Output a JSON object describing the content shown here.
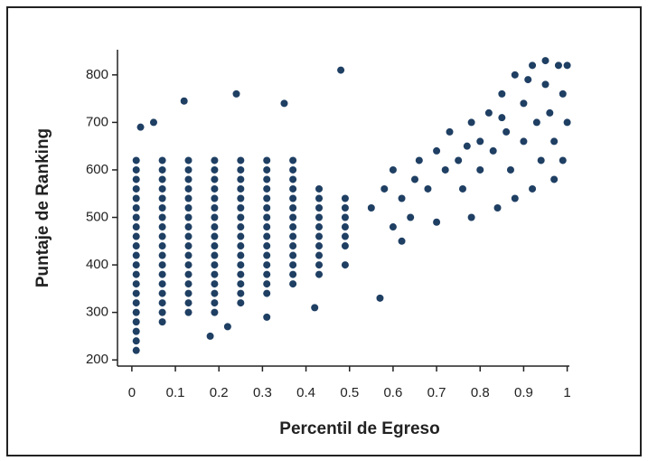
{
  "chart_data": {
    "type": "scatter",
    "xlabel": "Percentil de Egreso",
    "ylabel": "Puntaje de Ranking",
    "color": "#1f3f63",
    "xlim": [
      -0.033,
      1.005
    ],
    "ylim": [
      187,
      853
    ],
    "xticks": [
      0,
      0.1,
      0.2,
      0.3,
      0.4,
      0.5,
      0.6,
      0.7,
      0.8,
      0.9,
      1
    ],
    "yticks": [
      200,
      300,
      400,
      500,
      600,
      700,
      800
    ],
    "x": [
      0.01,
      0.07,
      0.13,
      0.19,
      0.25,
      0.31,
      0.37,
      0.01,
      0.07,
      0.13,
      0.19,
      0.25,
      0.31,
      0.37,
      0.01,
      0.07,
      0.13,
      0.19,
      0.25,
      0.31,
      0.37,
      0.01,
      0.07,
      0.13,
      0.19,
      0.25,
      0.31,
      0.37,
      0.43,
      0.01,
      0.07,
      0.13,
      0.19,
      0.25,
      0.31,
      0.37,
      0.43,
      0.49,
      0.01,
      0.07,
      0.13,
      0.19,
      0.25,
      0.31,
      0.37,
      0.43,
      0.49,
      0.01,
      0.07,
      0.13,
      0.19,
      0.25,
      0.31,
      0.37,
      0.43,
      0.49,
      0.01,
      0.07,
      0.13,
      0.19,
      0.25,
      0.31,
      0.37,
      0.43,
      0.49,
      0.01,
      0.07,
      0.13,
      0.19,
      0.25,
      0.31,
      0.37,
      0.43,
      0.49,
      0.01,
      0.07,
      0.13,
      0.19,
      0.25,
      0.31,
      0.37,
      0.43,
      0.49,
      0.01,
      0.07,
      0.13,
      0.19,
      0.25,
      0.31,
      0.37,
      0.43,
      0.01,
      0.07,
      0.13,
      0.19,
      0.25,
      0.31,
      0.37,
      0.43,
      0.49,
      0.01,
      0.07,
      0.13,
      0.19,
      0.25,
      0.31,
      0.37,
      0.43,
      0.01,
      0.07,
      0.13,
      0.19,
      0.25,
      0.31,
      0.37,
      0.01,
      0.07,
      0.13,
      0.19,
      0.25,
      0.31,
      0.01,
      0.07,
      0.13,
      0.19,
      0.25,
      0.01,
      0.07,
      0.13,
      0.19,
      0.01,
      0.07,
      0.01,
      0.01,
      0.01,
      0.55,
      0.58,
      0.6,
      0.62,
      0.65,
      0.66,
      0.68,
      0.7,
      0.72,
      0.73,
      0.75,
      0.76,
      0.78,
      0.8,
      0.8,
      0.82,
      0.83,
      0.85,
      0.86,
      0.87,
      0.88,
      0.9,
      0.9,
      0.92,
      0.93,
      0.94,
      0.95,
      0.96,
      0.97,
      0.98,
      0.99,
      1.0,
      1.0,
      0.99,
      0.97,
      0.92,
      0.88,
      0.84,
      0.78,
      0.7,
      0.64,
      0.6,
      0.95,
      0.91,
      0.85,
      0.77,
      0.48,
      0.12,
      0.24,
      0.35,
      0.05,
      0.18,
      0.22,
      0.31,
      0.42,
      0.57,
      0.62,
      0.02
    ],
    "values": [
      620,
      620,
      620,
      620,
      620,
      620,
      620,
      600,
      600,
      600,
      600,
      600,
      600,
      600,
      580,
      580,
      580,
      580,
      580,
      580,
      580,
      560,
      560,
      560,
      560,
      560,
      560,
      560,
      560,
      540,
      540,
      540,
      540,
      540,
      540,
      540,
      540,
      540,
      520,
      520,
      520,
      520,
      520,
      520,
      520,
      520,
      520,
      500,
      500,
      500,
      500,
      500,
      500,
      500,
      500,
      500,
      480,
      480,
      480,
      480,
      480,
      480,
      480,
      480,
      480,
      460,
      460,
      460,
      460,
      460,
      460,
      460,
      460,
      460,
      440,
      440,
      440,
      440,
      440,
      440,
      440,
      440,
      440,
      420,
      420,
      420,
      420,
      420,
      420,
      420,
      420,
      400,
      400,
      400,
      400,
      400,
      400,
      400,
      400,
      400,
      380,
      380,
      380,
      380,
      380,
      380,
      380,
      380,
      360,
      360,
      360,
      360,
      360,
      360,
      360,
      340,
      340,
      340,
      340,
      340,
      340,
      320,
      320,
      320,
      320,
      320,
      300,
      300,
      300,
      300,
      280,
      280,
      260,
      240,
      220,
      520,
      560,
      600,
      540,
      580,
      620,
      560,
      640,
      600,
      680,
      620,
      560,
      700,
      660,
      600,
      720,
      640,
      760,
      680,
      600,
      800,
      740,
      660,
      820,
      700,
      620,
      780,
      720,
      660,
      820,
      760,
      700,
      820,
      620,
      580,
      560,
      540,
      520,
      500,
      490,
      500,
      480,
      830,
      790,
      710,
      650,
      810,
      745,
      760,
      740,
      700,
      250,
      270,
      290,
      310,
      330,
      450,
      690
    ]
  }
}
